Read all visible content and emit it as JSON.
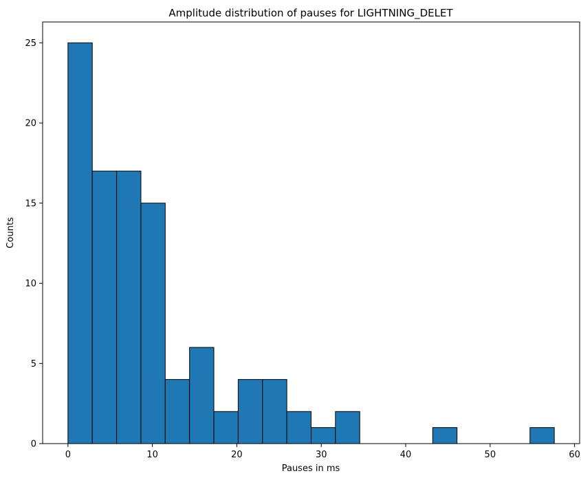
{
  "chart_data": {
    "type": "bar",
    "subtype": "histogram",
    "title": "Amplitude distribution of pauses for LIGHTNING_DELET",
    "xlabel": "Pauses in ms",
    "ylabel": "Counts",
    "bin_start": 0.0,
    "bin_end": 57.6,
    "bin_count": 20,
    "values": [
      25,
      17,
      17,
      15,
      4,
      6,
      2,
      4,
      4,
      2,
      1,
      2,
      0,
      0,
      0,
      1,
      0,
      0,
      0,
      1
    ],
    "xlim": [
      -3.0,
      60.6
    ],
    "ylim": [
      0,
      26.3
    ],
    "xticks": [
      0,
      10,
      20,
      30,
      40,
      50,
      60
    ],
    "yticks": [
      0,
      5,
      10,
      15,
      20,
      25
    ],
    "bar_color": "#1f77b4",
    "edge_color": "#000000",
    "grid": false,
    "legend": "none"
  }
}
